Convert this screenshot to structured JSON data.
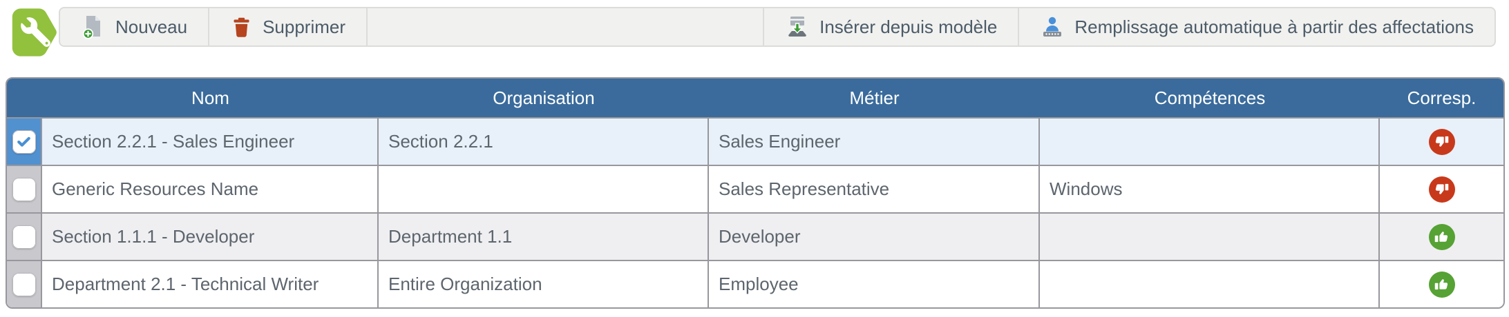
{
  "app_badge": {
    "icon": "wrench-icon"
  },
  "toolbar": {
    "left_buttons": [
      {
        "label": "Nouveau",
        "icon": "new-document-icon"
      },
      {
        "label": "Supprimer",
        "icon": "trash-icon"
      }
    ],
    "right_buttons": [
      {
        "label": "Insérer depuis modèle",
        "icon": "insert-template-icon"
      },
      {
        "label": "Remplissage automatique à partir des affectations",
        "icon": "auto-fill-person-icon"
      }
    ]
  },
  "table": {
    "columns": [
      {
        "key": "nom",
        "label": "Nom"
      },
      {
        "key": "organisation",
        "label": "Organisation"
      },
      {
        "key": "metier",
        "label": "Métier"
      },
      {
        "key": "competences",
        "label": "Compétences"
      },
      {
        "key": "correspondance",
        "label": "Corresp."
      }
    ],
    "rows": [
      {
        "selected": true,
        "nom": "Section 2.2.1 - Sales Engineer",
        "organisation": "Section 2.2.1",
        "metier": "Sales Engineer",
        "competences": "",
        "correspondance": "no-match"
      },
      {
        "selected": false,
        "nom": "Generic Resources Name",
        "organisation": "",
        "metier": "Sales Representative",
        "competences": "Windows",
        "correspondance": "no-match"
      },
      {
        "selected": false,
        "nom": "Section 1.1.1 - Developer",
        "organisation": "Department 1.1",
        "metier": "Developer",
        "competences": "",
        "correspondance": "match"
      },
      {
        "selected": false,
        "nom": "Department 2.1 - Technical Writer",
        "organisation": "Entire Organization",
        "metier": "Employee",
        "competences": "",
        "correspondance": "match"
      }
    ]
  },
  "colors": {
    "header_bg": "#3a6b9c",
    "selected_row_bg": "#e8f1f9",
    "stripe_row_bg": "#efeff1",
    "match_green": "#56a234",
    "no_match_red": "#c8391b",
    "checked_cell_blue": "#5191d0",
    "unchecked_cell_gray": "#c8c8cd",
    "badge_green": "#92c13d",
    "toolbar_bg": "#f1f1ef"
  }
}
